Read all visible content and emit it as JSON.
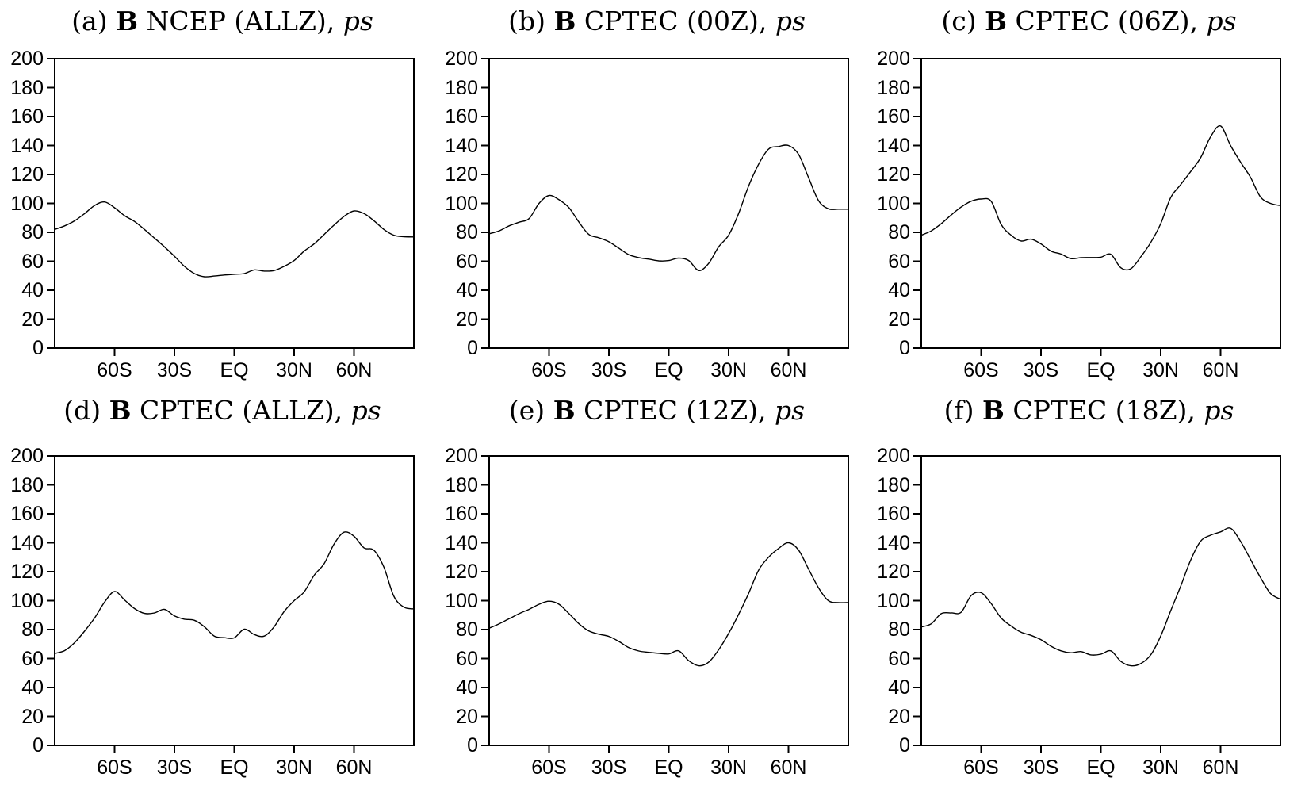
{
  "figure": {
    "background": "#ffffff",
    "curve_color": "#000000",
    "axis_color": "#000000"
  },
  "axes": {
    "y_range": [
      0,
      200
    ],
    "y_tick_step": 20,
    "y_tick_labels": [
      "0",
      "20",
      "40",
      "60",
      "80",
      "100",
      "120",
      "140",
      "160",
      "180",
      "200"
    ],
    "x_range_lats": [
      -90,
      90
    ],
    "x_tick_lats": [
      -60,
      -30,
      0,
      30,
      60
    ],
    "x_tick_labels": [
      "60S",
      "30S",
      "EQ",
      "30N",
      "60N"
    ],
    "latitudes_deg": [
      -90,
      -85,
      -80,
      -75,
      -70,
      -65,
      -60,
      -55,
      -50,
      -45,
      -40,
      -35,
      -30,
      -25,
      -20,
      -15,
      -10,
      -5,
      0,
      5,
      10,
      15,
      20,
      25,
      30,
      35,
      40,
      45,
      50,
      55,
      60,
      65,
      70,
      75,
      80,
      85,
      90
    ]
  },
  "chart_data": [
    {
      "type": "line",
      "panel": "a",
      "title_plain": "(a) B NCEP (ALLZ), ps",
      "title_segments": [
        {
          "text": "(a) ",
          "style": "normal"
        },
        {
          "text": "B",
          "style": "bold"
        },
        {
          "text": " NCEP (ALLZ), ",
          "style": "normal"
        },
        {
          "text": "ps",
          "style": "italic"
        }
      ],
      "values": [
        82,
        84.5,
        88,
        93,
        98.5,
        101,
        97,
        91.5,
        87.5,
        82,
        76,
        70,
        63.5,
        56.5,
        51.5,
        49.3,
        49.8,
        50.5,
        51,
        51.5,
        54,
        53.2,
        53.6,
        56.5,
        60.5,
        67,
        72,
        78.5,
        85,
        91,
        94.8,
        93,
        88,
        82,
        78,
        77,
        76.8
      ]
    },
    {
      "type": "line",
      "panel": "b",
      "title_plain": "(b) B CPTEC (00Z), ps",
      "title_segments": [
        {
          "text": "(b) ",
          "style": "normal"
        },
        {
          "text": "B",
          "style": "bold"
        },
        {
          "text": " CPTEC (00Z), ",
          "style": "normal"
        },
        {
          "text": "ps",
          "style": "italic"
        }
      ],
      "values": [
        79,
        81,
        84.5,
        87,
        89.5,
        100,
        105.5,
        102.5,
        97,
        87,
        78.5,
        76.2,
        73.5,
        69,
        64.5,
        62.5,
        61.5,
        60.3,
        60.5,
        62.2,
        60.5,
        53.6,
        58.5,
        70,
        78,
        93,
        112,
        127,
        137.5,
        139.3,
        140,
        134,
        118,
        102,
        96.3,
        96,
        96
      ]
    },
    {
      "type": "line",
      "panel": "c",
      "title_plain": "(c) B CPTEC (06Z), ps",
      "title_segments": [
        {
          "text": "(c) ",
          "style": "normal"
        },
        {
          "text": "B",
          "style": "bold"
        },
        {
          "text": " CPTEC (06Z), ",
          "style": "normal"
        },
        {
          "text": "ps",
          "style": "italic"
        }
      ],
      "values": [
        78,
        81,
        86,
        92,
        97.5,
        101.5,
        103,
        101.5,
        85.5,
        78,
        74,
        75.3,
        72,
        67,
        65,
        61.8,
        62.5,
        62.6,
        62.8,
        64.8,
        55.5,
        54.8,
        63,
        73,
        86,
        104,
        113,
        122,
        131.5,
        146,
        153.5,
        140,
        128.5,
        118,
        104.5,
        100,
        98.5
      ]
    },
    {
      "type": "line",
      "panel": "d",
      "title_plain": "(d) B CPTEC (ALLZ), ps",
      "title_segments": [
        {
          "text": "(d) ",
          "style": "normal"
        },
        {
          "text": "B",
          "style": "bold"
        },
        {
          "text": " CPTEC (ALLZ), ",
          "style": "normal"
        },
        {
          "text": "ps",
          "style": "italic"
        }
      ],
      "values": [
        63.5,
        65.5,
        71,
        79,
        88,
        99,
        106.3,
        100.5,
        94.5,
        91.2,
        91.5,
        94,
        89.5,
        87.2,
        86.4,
        82,
        75.5,
        74.4,
        74.3,
        80.3,
        76.6,
        75.5,
        82,
        92.5,
        100,
        106,
        117.5,
        125.5,
        139,
        147.3,
        144.5,
        136.5,
        134.8,
        123,
        103,
        95.5,
        94.3
      ]
    },
    {
      "type": "line",
      "panel": "e",
      "title_plain": "(e) B CPTEC (12Z), ps",
      "title_segments": [
        {
          "text": "(e) ",
          "style": "normal"
        },
        {
          "text": "B",
          "style": "bold"
        },
        {
          "text": " CPTEC (12Z), ",
          "style": "normal"
        },
        {
          "text": "ps",
          "style": "italic"
        }
      ],
      "values": [
        81,
        84,
        87.5,
        91,
        94,
        97.5,
        99.6,
        97.5,
        91,
        84,
        79,
        76.8,
        75.3,
        71.8,
        67.5,
        65.2,
        64.3,
        63.6,
        63.2,
        65.3,
        58.5,
        55,
        57.5,
        66,
        77.3,
        90.5,
        105,
        121,
        130,
        136,
        140,
        135,
        122,
        109,
        100,
        98.7,
        98.7
      ]
    },
    {
      "type": "line",
      "panel": "f",
      "title_plain": "(f) B CPTEC (18Z), ps",
      "title_segments": [
        {
          "text": "(f) ",
          "style": "normal"
        },
        {
          "text": "B",
          "style": "bold"
        },
        {
          "text": " CPTEC (18Z), ",
          "style": "normal"
        },
        {
          "text": "ps",
          "style": "italic"
        }
      ],
      "values": [
        81.8,
        84,
        91,
        91.5,
        92,
        103.5,
        105.5,
        98,
        88,
        82.5,
        78.2,
        76,
        73,
        68.5,
        65.3,
        64,
        64.8,
        62.5,
        63,
        65.3,
        58,
        55,
        56.5,
        62.5,
        75.5,
        93,
        110,
        128,
        141,
        145.2,
        147.5,
        150,
        141,
        128.5,
        116,
        105,
        101
      ]
    }
  ]
}
